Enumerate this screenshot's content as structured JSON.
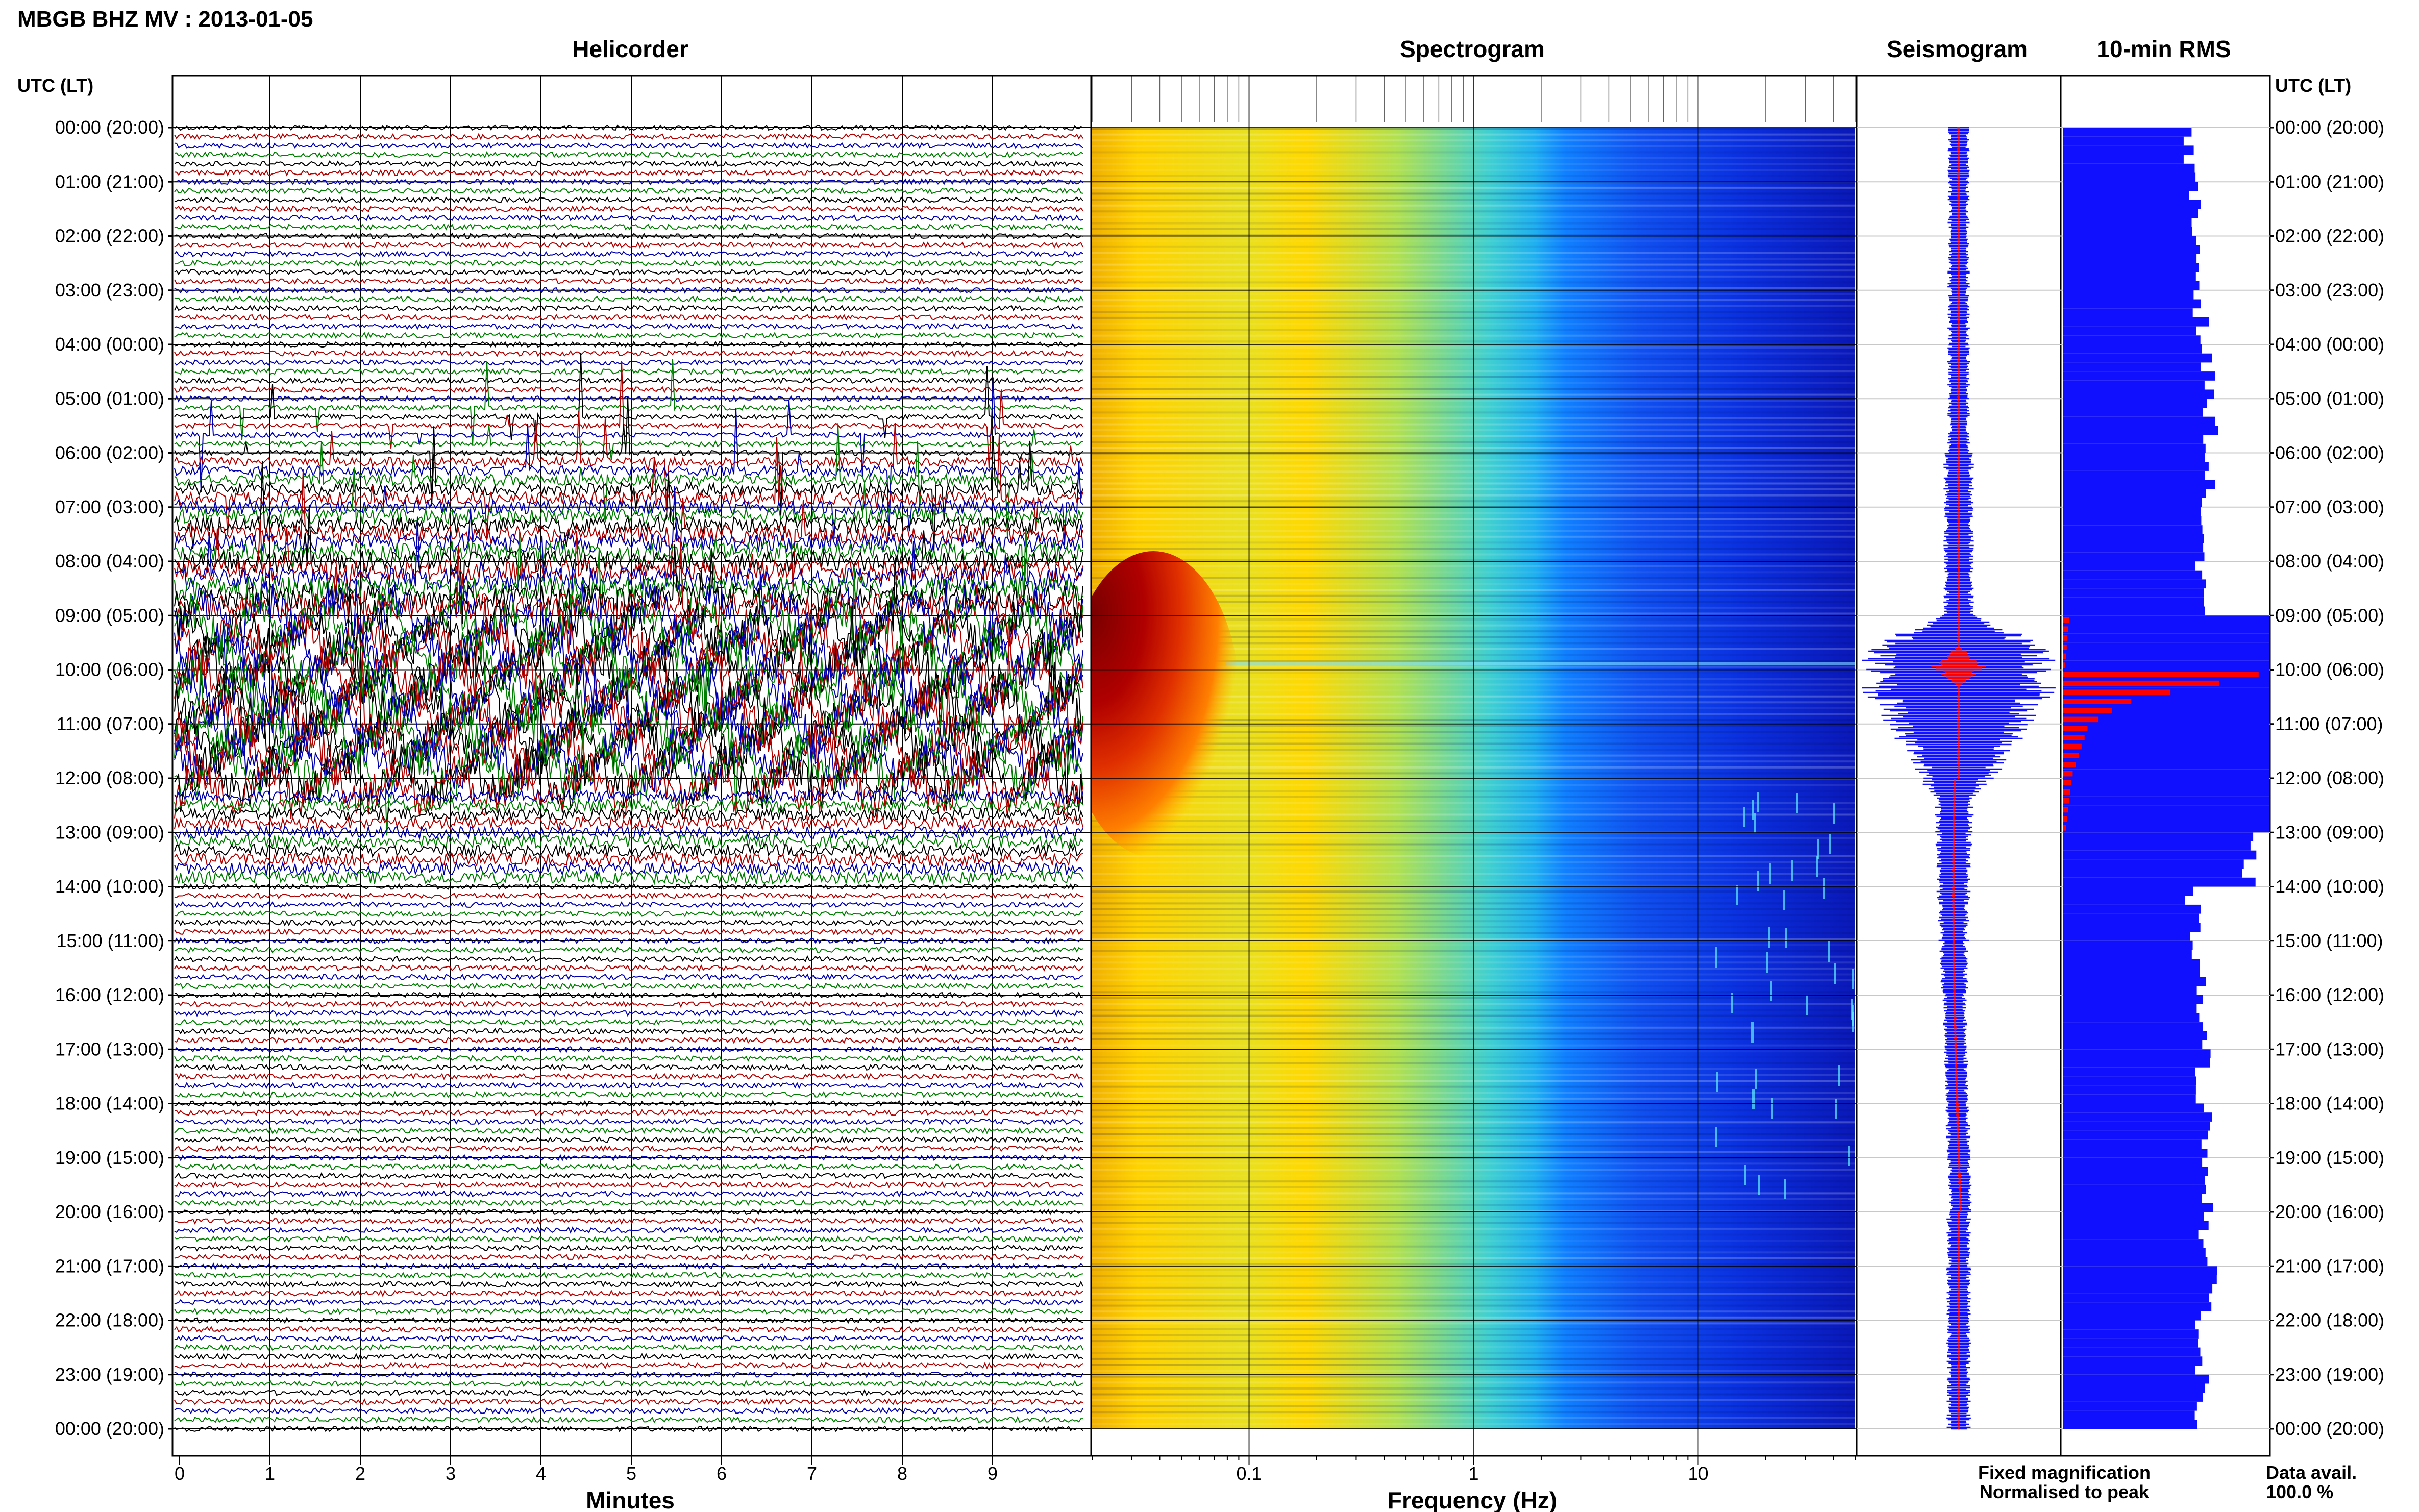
{
  "header": {
    "title": "MBGB BHZ MV : 2013-01-05"
  },
  "panels": {
    "helicorder": "Helicorder",
    "spectrogram": "Spectrogram",
    "seismogram": "Seismogram",
    "rms": "10-min RMS"
  },
  "axis_titles": {
    "left": "UTC (LT)",
    "right": "UTC (LT)",
    "minutes": "Minutes",
    "frequency": "Frequency (Hz)"
  },
  "legend": {
    "fixed": "Fixed magnification",
    "normalised": "Normalised to peak",
    "fixed_color": "#1010ff",
    "normalised_color": "#ff0000"
  },
  "data_avail": {
    "label": "Data avail.",
    "value": "100.0 %"
  },
  "chart_data": {
    "type": "heatmap",
    "title": "MBGB BHZ MV : 2013-01-05",
    "time_labels": [
      "00:00 (20:00)",
      "01:00 (21:00)",
      "02:00 (22:00)",
      "03:00 (23:00)",
      "04:00 (00:00)",
      "05:00 (01:00)",
      "06:00 (02:00)",
      "07:00 (03:00)",
      "08:00 (04:00)",
      "09:00 (05:00)",
      "10:00 (06:00)",
      "11:00 (07:00)",
      "12:00 (08:00)",
      "13:00 (09:00)",
      "14:00 (10:00)",
      "15:00 (11:00)",
      "16:00 (12:00)",
      "17:00 (13:00)",
      "18:00 (14:00)",
      "19:00 (15:00)",
      "20:00 (16:00)",
      "21:00 (17:00)",
      "22:00 (18:00)",
      "23:00 (19:00)",
      "00:00 (20:00)"
    ],
    "helicorder": {
      "xlabel": "Minutes",
      "x_ticks": [
        "0",
        "1",
        "2",
        "3",
        "4",
        "5",
        "6",
        "7",
        "8",
        "9"
      ],
      "xlim": [
        0,
        10
      ],
      "trace_colors": [
        "#000000",
        "#b00000",
        "#0000b0",
        "#008000"
      ]
    },
    "spectrogram": {
      "xlabel": "Frequency (Hz)",
      "x_scale": "log",
      "x_ticks": [
        "0.1",
        "1",
        "10"
      ],
      "xlim": [
        0.02,
        50
      ]
    },
    "rms_10min": {
      "xlabel": "",
      "series": [
        {
          "name": "Fixed magnification",
          "color": "#1010ff"
        },
        {
          "name": "Normalised to peak",
          "color": "#ff0000"
        }
      ],
      "hourly_fixed": [
        0.61,
        0.63,
        0.66,
        0.67,
        0.7,
        0.72,
        0.7,
        0.68,
        0.66,
        1.0,
        1.0,
        1.0,
        1.0,
        0.9,
        0.63,
        0.66,
        0.67,
        0.68,
        0.69,
        0.71,
        0.69,
        0.71,
        0.66,
        0.68
      ],
      "hourly_normalised": [
        0,
        0,
        0,
        0,
        0,
        0,
        0,
        0,
        0,
        0.03,
        0.95,
        0.12,
        0.04,
        0,
        0,
        0,
        0,
        0,
        0,
        0,
        0,
        0,
        0,
        0
      ]
    }
  }
}
